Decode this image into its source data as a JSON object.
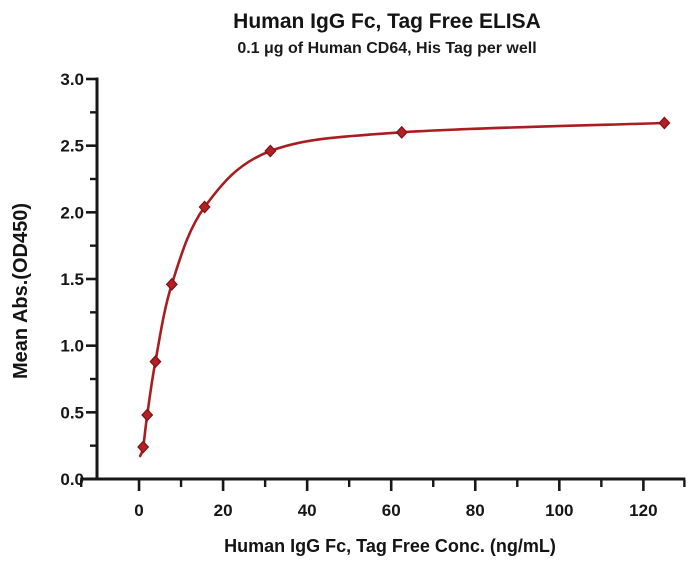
{
  "figure": {
    "title": "Human IgG Fc, Tag Free ELISA",
    "subtitle": "0.1 μg of Human CD64, His Tag per well"
  },
  "chart_data": {
    "type": "scatter",
    "curve": "fitted binding curve through data points",
    "title": "Human IgG Fc, Tag Free ELISA",
    "subtitle": "0.1 μg of Human CD64, His Tag per well",
    "xlabel": "Human IgG Fc, Tag Free Conc. (ng/mL)",
    "ylabel": "Mean Abs.(OD450)",
    "x": [
      0.98,
      1.95,
      3.9,
      7.8,
      15.6,
      31.25,
      62.5,
      125
    ],
    "y": [
      0.24,
      0.48,
      0.88,
      1.46,
      2.04,
      2.46,
      2.6,
      2.67
    ],
    "xlim": [
      -14,
      130
    ],
    "ylim": [
      0,
      3
    ],
    "x_major_ticks": [
      0,
      20,
      40,
      60,
      80,
      100,
      120
    ],
    "x_tick_labels": [
      "0",
      "20",
      "40",
      "60",
      "80",
      "100",
      "120"
    ],
    "x_minor_ticks": [
      10,
      30,
      50,
      70,
      90,
      110
    ],
    "y_major_ticks": [
      0,
      0.5,
      1,
      1.5,
      2,
      2.5,
      3
    ],
    "y_tick_labels": [
      "0.0",
      "0.5",
      "1.0",
      "1.5",
      "2.0",
      "2.5",
      "3.0"
    ],
    "y_minor_ticks": [
      0.25,
      0.75,
      1.25,
      1.75,
      2.25,
      2.75
    ],
    "grid": "off",
    "legend": "none",
    "colors": {
      "marker_fill": "#b22025",
      "marker_stroke": "#801114",
      "curve_line": "#a81d21",
      "axis": "#171717",
      "background": "#ffffff"
    }
  }
}
